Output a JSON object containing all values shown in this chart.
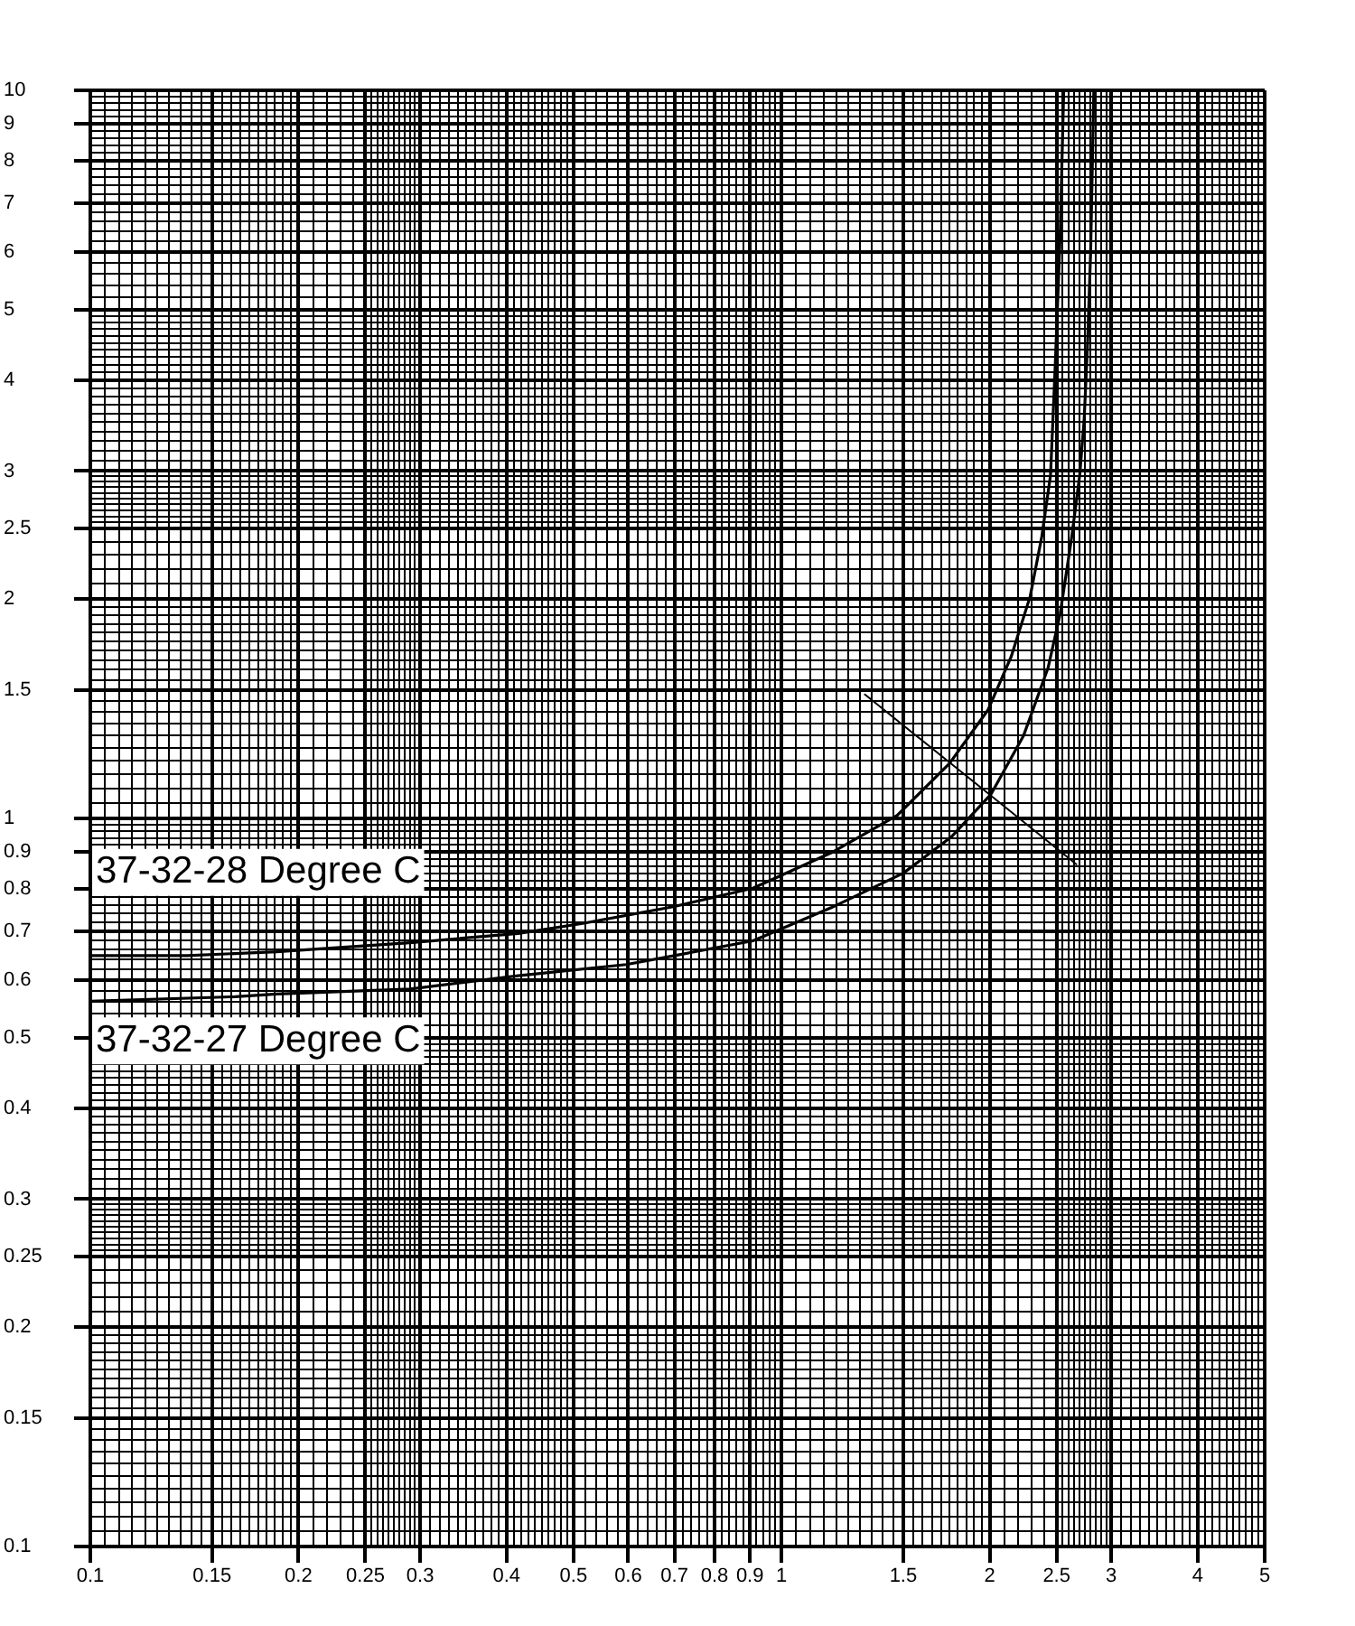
{
  "chart_data": {
    "type": "line",
    "log": "xy",
    "grid": true,
    "xlim": [
      0.1,
      5
    ],
    "xticks": [
      0.1,
      {
        "value": 0.105,
        "label": null
      },
      {
        "value": 0.11,
        "label": null
      },
      {
        "value": 0.115,
        "label": null
      },
      {
        "value": 0.12,
        "label": null
      },
      {
        "value": 0.125,
        "label": null
      },
      {
        "value": 0.13,
        "label": null
      },
      {
        "value": 0.135,
        "label": null
      },
      {
        "value": 0.14,
        "label": null
      },
      {
        "value": 0.145,
        "label": null
      },
      0.15,
      {
        "value": 0.155,
        "label": null
      },
      {
        "value": 0.16,
        "label": null
      },
      {
        "value": 0.165,
        "label": null
      },
      {
        "value": 0.17,
        "label": null
      },
      {
        "value": 0.175,
        "label": null
      },
      {
        "value": 0.18,
        "label": null
      },
      {
        "value": 0.185,
        "label": null
      },
      {
        "value": 0.19,
        "label": null
      },
      {
        "value": 0.195,
        "label": null
      },
      0.2,
      {
        "value": 0.21,
        "label": null
      },
      {
        "value": 0.22,
        "label": null
      },
      {
        "value": 0.23,
        "label": null
      },
      {
        "value": 0.24,
        "label": null
      },
      0.25,
      {
        "value": 0.255,
        "label": null
      },
      {
        "value": 0.26,
        "label": null
      },
      {
        "value": 0.265,
        "label": null
      },
      {
        "value": 0.27,
        "label": null
      },
      {
        "value": 0.275,
        "label": null
      },
      {
        "value": 0.28,
        "label": null
      },
      {
        "value": 0.285,
        "label": null
      },
      {
        "value": 0.29,
        "label": null
      },
      {
        "value": 0.295,
        "label": null
      },
      0.3,
      {
        "value": 0.31,
        "label": null
      },
      {
        "value": 0.32,
        "label": null
      },
      {
        "value": 0.33,
        "label": null
      },
      {
        "value": 0.34,
        "label": null
      },
      {
        "value": 0.35,
        "label": null
      },
      {
        "value": 0.36,
        "label": null
      },
      {
        "value": 0.37,
        "label": null
      },
      {
        "value": 0.38,
        "label": null
      },
      {
        "value": 0.39,
        "label": null
      },
      0.4,
      {
        "value": 0.41,
        "label": null
      },
      {
        "value": 0.42,
        "label": null
      },
      {
        "value": 0.43,
        "label": null
      },
      {
        "value": 0.44,
        "label": null
      },
      {
        "value": 0.45,
        "label": null
      },
      {
        "value": 0.46,
        "label": null
      },
      {
        "value": 0.47,
        "label": null
      },
      {
        "value": 0.48,
        "label": null
      },
      {
        "value": 0.49,
        "label": null
      },
      0.5,
      {
        "value": 0.52,
        "label": null
      },
      {
        "value": 0.54,
        "label": null
      },
      {
        "value": 0.56,
        "label": null
      },
      {
        "value": 0.58,
        "label": null
      },
      0.6,
      {
        "value": 0.62,
        "label": null
      },
      {
        "value": 0.64,
        "label": null
      },
      {
        "value": 0.66,
        "label": null
      },
      {
        "value": 0.68,
        "label": null
      },
      0.7,
      {
        "value": 0.72,
        "label": null
      },
      {
        "value": 0.74,
        "label": null
      },
      {
        "value": 0.76,
        "label": null
      },
      {
        "value": 0.78,
        "label": null
      },
      0.8,
      {
        "value": 0.82,
        "label": null
      },
      {
        "value": 0.84,
        "label": null
      },
      {
        "value": 0.86,
        "label": null
      },
      {
        "value": 0.88,
        "label": null
      },
      0.9,
      {
        "value": 0.92,
        "label": null
      },
      {
        "value": 0.94,
        "label": null
      },
      {
        "value": 0.96,
        "label": null
      },
      {
        "value": 0.98,
        "label": null
      },
      1,
      {
        "value": 1.05,
        "label": null
      },
      {
        "value": 1.1,
        "label": null
      },
      {
        "value": 1.15,
        "label": null
      },
      {
        "value": 1.2,
        "label": null
      },
      {
        "value": 1.25,
        "label": null
      },
      {
        "value": 1.3,
        "label": null
      },
      {
        "value": 1.35,
        "label": null
      },
      {
        "value": 1.4,
        "label": null
      },
      {
        "value": 1.45,
        "label": null
      },
      1.5,
      {
        "value": 1.55,
        "label": null
      },
      {
        "value": 1.6,
        "label": null
      },
      {
        "value": 1.65,
        "label": null
      },
      {
        "value": 1.7,
        "label": null
      },
      {
        "value": 1.75,
        "label": null
      },
      {
        "value": 1.8,
        "label": null
      },
      {
        "value": 1.85,
        "label": null
      },
      {
        "value": 1.9,
        "label": null
      },
      {
        "value": 1.95,
        "label": null
      },
      2,
      {
        "value": 2.1,
        "label": null
      },
      {
        "value": 2.2,
        "label": null
      },
      {
        "value": 2.3,
        "label": null
      },
      {
        "value": 2.4,
        "label": null
      },
      2.5,
      {
        "value": 2.55,
        "label": null
      },
      {
        "value": 2.6,
        "label": null
      },
      {
        "value": 2.65,
        "label": null
      },
      {
        "value": 2.7,
        "label": null
      },
      {
        "value": 2.75,
        "label": null
      },
      {
        "value": 2.8,
        "label": null
      },
      {
        "value": 2.85,
        "label": null
      },
      {
        "value": 2.9,
        "label": null
      },
      {
        "value": 2.95,
        "label": null
      },
      3,
      {
        "value": 3.1,
        "label": null
      },
      {
        "value": 3.2,
        "label": null
      },
      {
        "value": 3.3,
        "label": null
      },
      {
        "value": 3.4,
        "label": null
      },
      {
        "value": 3.5,
        "label": null
      },
      {
        "value": 3.6,
        "label": null
      },
      {
        "value": 3.7,
        "label": null
      },
      {
        "value": 3.8,
        "label": null
      },
      {
        "value": 3.9,
        "label": null
      },
      4,
      {
        "value": 4.1,
        "label": null
      },
      {
        "value": 4.2,
        "label": null
      },
      {
        "value": 4.3,
        "label": null
      },
      {
        "value": 4.4,
        "label": null
      },
      {
        "value": 4.5,
        "label": null
      },
      {
        "value": 4.6,
        "label": null
      },
      {
        "value": 4.7,
        "label": null
      },
      {
        "value": 4.8,
        "label": null
      },
      {
        "value": 4.9,
        "label": null
      },
      5
    ],
    "ylim": [
      0.1,
      10
    ],
    "yticks": [
      0.1,
      {
        "value": 0.105,
        "label": null
      },
      {
        "value": 0.11,
        "label": null
      },
      {
        "value": 0.115,
        "label": null
      },
      {
        "value": 0.12,
        "label": null
      },
      {
        "value": 0.125,
        "label": null
      },
      {
        "value": 0.13,
        "label": null
      },
      {
        "value": 0.135,
        "label": null
      },
      {
        "value": 0.14,
        "label": null
      },
      {
        "value": 0.145,
        "label": null
      },
      0.15,
      {
        "value": 0.155,
        "label": null
      },
      {
        "value": 0.16,
        "label": null
      },
      {
        "value": 0.165,
        "label": null
      },
      {
        "value": 0.17,
        "label": null
      },
      {
        "value": 0.175,
        "label": null
      },
      {
        "value": 0.18,
        "label": null
      },
      {
        "value": 0.185,
        "label": null
      },
      {
        "value": 0.19,
        "label": null
      },
      {
        "value": 0.195,
        "label": null
      },
      0.2,
      {
        "value": 0.21,
        "label": null
      },
      {
        "value": 0.22,
        "label": null
      },
      {
        "value": 0.23,
        "label": null
      },
      {
        "value": 0.24,
        "label": null
      },
      0.25,
      {
        "value": 0.255,
        "label": null
      },
      {
        "value": 0.26,
        "label": null
      },
      {
        "value": 0.265,
        "label": null
      },
      {
        "value": 0.27,
        "label": null
      },
      {
        "value": 0.275,
        "label": null
      },
      {
        "value": 0.28,
        "label": null
      },
      {
        "value": 0.285,
        "label": null
      },
      {
        "value": 0.29,
        "label": null
      },
      {
        "value": 0.295,
        "label": null
      },
      0.3,
      {
        "value": 0.31,
        "label": null
      },
      {
        "value": 0.32,
        "label": null
      },
      {
        "value": 0.33,
        "label": null
      },
      {
        "value": 0.34,
        "label": null
      },
      {
        "value": 0.35,
        "label": null
      },
      {
        "value": 0.36,
        "label": null
      },
      {
        "value": 0.37,
        "label": null
      },
      {
        "value": 0.38,
        "label": null
      },
      {
        "value": 0.39,
        "label": null
      },
      0.4,
      {
        "value": 0.41,
        "label": null
      },
      {
        "value": 0.42,
        "label": null
      },
      {
        "value": 0.43,
        "label": null
      },
      {
        "value": 0.44,
        "label": null
      },
      {
        "value": 0.45,
        "label": null
      },
      {
        "value": 0.46,
        "label": null
      },
      {
        "value": 0.47,
        "label": null
      },
      {
        "value": 0.48,
        "label": null
      },
      {
        "value": 0.49,
        "label": null
      },
      0.5,
      {
        "value": 0.52,
        "label": null
      },
      {
        "value": 0.54,
        "label": null
      },
      {
        "value": 0.56,
        "label": null
      },
      {
        "value": 0.58,
        "label": null
      },
      0.6,
      {
        "value": 0.62,
        "label": null
      },
      {
        "value": 0.64,
        "label": null
      },
      {
        "value": 0.66,
        "label": null
      },
      {
        "value": 0.68,
        "label": null
      },
      0.7,
      {
        "value": 0.72,
        "label": null
      },
      {
        "value": 0.74,
        "label": null
      },
      {
        "value": 0.76,
        "label": null
      },
      {
        "value": 0.78,
        "label": null
      },
      0.8,
      {
        "value": 0.82,
        "label": null
      },
      {
        "value": 0.84,
        "label": null
      },
      {
        "value": 0.86,
        "label": null
      },
      {
        "value": 0.88,
        "label": null
      },
      0.9,
      {
        "value": 0.92,
        "label": null
      },
      {
        "value": 0.94,
        "label": null
      },
      {
        "value": 0.96,
        "label": null
      },
      {
        "value": 0.98,
        "label": null
      },
      1,
      {
        "value": 1.05,
        "label": null
      },
      {
        "value": 1.1,
        "label": null
      },
      {
        "value": 1.15,
        "label": null
      },
      {
        "value": 1.2,
        "label": null
      },
      {
        "value": 1.25,
        "label": null
      },
      {
        "value": 1.3,
        "label": null
      },
      {
        "value": 1.35,
        "label": null
      },
      {
        "value": 1.4,
        "label": null
      },
      {
        "value": 1.45,
        "label": null
      },
      1.5,
      {
        "value": 1.55,
        "label": null
      },
      {
        "value": 1.6,
        "label": null
      },
      {
        "value": 1.65,
        "label": null
      },
      {
        "value": 1.7,
        "label": null
      },
      {
        "value": 1.75,
        "label": null
      },
      {
        "value": 1.8,
        "label": null
      },
      {
        "value": 1.85,
        "label": null
      },
      {
        "value": 1.9,
        "label": null
      },
      {
        "value": 1.95,
        "label": null
      },
      2,
      {
        "value": 2.1,
        "label": null
      },
      {
        "value": 2.2,
        "label": null
      },
      {
        "value": 2.3,
        "label": null
      },
      {
        "value": 2.4,
        "label": null
      },
      2.5,
      {
        "value": 2.55,
        "label": null
      },
      {
        "value": 2.6,
        "label": null
      },
      {
        "value": 2.65,
        "label": null
      },
      {
        "value": 2.7,
        "label": null
      },
      {
        "value": 2.75,
        "label": null
      },
      {
        "value": 2.8,
        "label": null
      },
      {
        "value": 2.85,
        "label": null
      },
      {
        "value": 2.9,
        "label": null
      },
      {
        "value": 2.95,
        "label": null
      },
      3,
      {
        "value": 3.1,
        "label": null
      },
      {
        "value": 3.2,
        "label": null
      },
      {
        "value": 3.3,
        "label": null
      },
      {
        "value": 3.4,
        "label": null
      },
      {
        "value": 3.5,
        "label": null
      },
      {
        "value": 3.6,
        "label": null
      },
      {
        "value": 3.7,
        "label": null
      },
      {
        "value": 3.8,
        "label": null
      },
      {
        "value": 3.9,
        "label": null
      },
      4,
      {
        "value": 4.1,
        "label": null
      },
      {
        "value": 4.2,
        "label": null
      },
      {
        "value": 4.3,
        "label": null
      },
      {
        "value": 4.4,
        "label": null
      },
      {
        "value": 4.5,
        "label": null
      },
      {
        "value": 4.6,
        "label": null
      },
      {
        "value": 4.7,
        "label": null
      },
      {
        "value": 4.8,
        "label": null
      },
      {
        "value": 4.9,
        "label": null
      },
      5,
      {
        "value": 5.2,
        "label": null
      },
      {
        "value": 5.4,
        "label": null
      },
      {
        "value": 5.6,
        "label": null
      },
      {
        "value": 5.8,
        "label": null
      },
      6,
      {
        "value": 6.2,
        "label": null
      },
      {
        "value": 6.4,
        "label": null
      },
      {
        "value": 6.6,
        "label": null
      },
      {
        "value": 6.8,
        "label": null
      },
      7,
      {
        "value": 7.2,
        "label": null
      },
      {
        "value": 7.4,
        "label": null
      },
      {
        "value": 7.6,
        "label": null
      },
      {
        "value": 7.8,
        "label": null
      },
      8,
      {
        "value": 8.2,
        "label": null
      },
      {
        "value": 8.4,
        "label": null
      },
      {
        "value": 8.6,
        "label": null
      },
      {
        "value": 8.8,
        "label": null
      },
      9,
      {
        "value": 9.2,
        "label": null
      },
      {
        "value": 9.4,
        "label": null
      },
      {
        "value": 9.6,
        "label": null
      },
      {
        "value": 9.8,
        "label": null
      },
      10
    ],
    "series": [
      {
        "name": "37-32-28 Degree C",
        "color": "#000000",
        "x": [
          0.1,
          0.138,
          0.186,
          0.29,
          0.416,
          0.518,
          0.7,
          0.909,
          1.18,
          1.47,
          1.75,
          1.99,
          2.15,
          2.29,
          2.38,
          2.45,
          2.49,
          2.53,
          2.56
        ],
        "values": [
          0.648,
          0.648,
          0.656,
          0.675,
          0.695,
          0.718,
          0.757,
          0.802,
          0.897,
          1.01,
          1.19,
          1.41,
          1.67,
          2.02,
          2.44,
          2.96,
          4.24,
          6.33,
          10
        ]
      },
      {
        "name": "37-32-27 Degree C",
        "color": "#000000",
        "x": [
          0.1,
          0.162,
          0.186,
          0.29,
          0.416,
          0.596,
          0.7,
          0.909,
          1.18,
          1.5,
          1.76,
          2.01,
          2.24,
          2.43,
          2.53,
          2.63,
          2.7,
          2.74,
          2.77,
          2.8,
          2.83
        ],
        "values": [
          0.561,
          0.569,
          0.574,
          0.583,
          0.608,
          0.63,
          0.648,
          0.679,
          0.754,
          0.841,
          0.943,
          1.08,
          1.3,
          1.61,
          1.91,
          2.44,
          2.96,
          3.52,
          4.42,
          5.98,
          10
        ]
      },
      {
        "type": "line",
        "color": "#000000",
        "x": [
          1.32,
          2.67
        ],
        "values": [
          1.48,
          0.865
        ]
      }
    ]
  }
}
